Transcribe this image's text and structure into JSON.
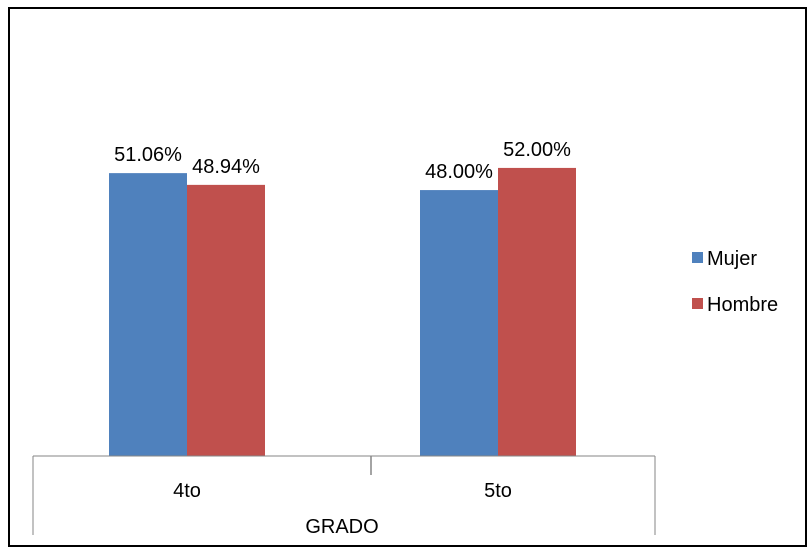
{
  "chart_data": {
    "type": "bar",
    "categories": [
      "4to",
      "5to"
    ],
    "series": [
      {
        "name": "Mujer",
        "values": [
          51.06,
          48.0
        ],
        "labels": [
          "51.06%",
          "48.00%"
        ],
        "color": "#4F81BD"
      },
      {
        "name": "Hombre",
        "values": [
          48.94,
          52.0
        ],
        "labels": [
          "48.94%",
          "52.00%"
        ],
        "color": "#C0504D"
      }
    ],
    "title": "",
    "xlabel": "GRADO",
    "ylabel": "",
    "ylim": [
      0,
      58
    ],
    "grid": false,
    "legend": "right"
  }
}
